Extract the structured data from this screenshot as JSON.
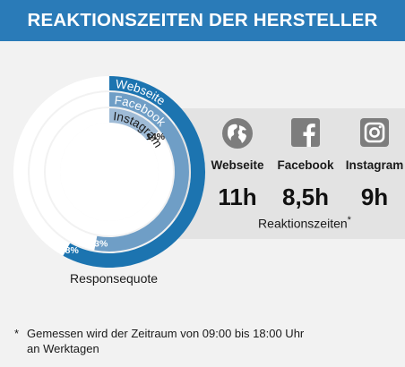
{
  "header": {
    "title": "REAKTIONSZEITEN DER HERSTELLER"
  },
  "chart_data": {
    "type": "radial-bar",
    "series": [
      {
        "name": "Webseite",
        "value": 58,
        "label": "58%",
        "color": "#1c74b0"
      },
      {
        "name": "Facebook",
        "value": 53,
        "label": "53%",
        "color": "#6f9ec6"
      },
      {
        "name": "Instagram",
        "value": 14,
        "label": "14%",
        "color": "#9fbbd6"
      }
    ],
    "unit": "percent",
    "xlabel": "Responsequote"
  },
  "reaction_times": {
    "label": "Reaktionszeiten",
    "footnote_marker": "*",
    "items": [
      {
        "platform": "Webseite",
        "time": "11h",
        "icon": "globe-icon"
      },
      {
        "platform": "Facebook",
        "time": "8,5h",
        "icon": "facebook-icon"
      },
      {
        "platform": "Instagram",
        "time": "9h",
        "icon": "instagram-icon"
      }
    ]
  },
  "footnote": {
    "marker": "*",
    "text_line1": "Gemessen wird der Zeitraum von 09:00 bis 18:00 Uhr",
    "text_line2": "an Werktagen"
  }
}
